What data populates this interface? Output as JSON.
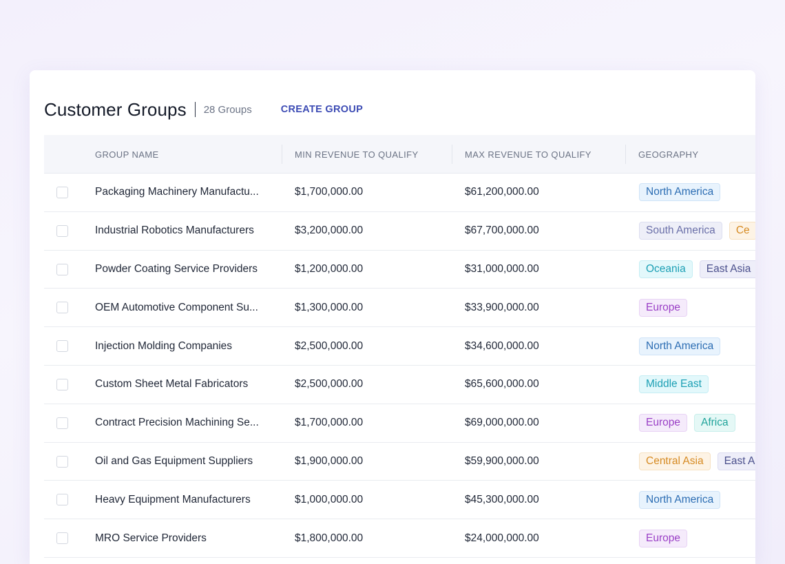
{
  "header": {
    "title": "Customer Groups",
    "count": "28 Groups",
    "create_label": "CREATE GROUP"
  },
  "columns": {
    "name": "GROUP NAME",
    "min": "MIN REVENUE TO QUALIFY",
    "max": "MAX REVENUE TO QUALIFY",
    "geo": "GEOGRAPHY"
  },
  "rows": [
    {
      "name": "Packaging Machinery Manufactu...",
      "min": "$1,700,000.00",
      "max": "$61,200,000.00",
      "tags": [
        {
          "label": "North America",
          "color": "na"
        }
      ]
    },
    {
      "name": "Industrial Robotics Manufacturers",
      "min": "$3,200,000.00",
      "max": "$67,700,000.00",
      "tags": [
        {
          "label": "South America",
          "color": "sa"
        },
        {
          "label": "Ce",
          "color": "ce"
        }
      ]
    },
    {
      "name": "Powder Coating Service Providers",
      "min": "$1,200,000.00",
      "max": "$31,000,000.00",
      "tags": [
        {
          "label": "Oceania",
          "color": "oc"
        },
        {
          "label": "East Asia",
          "color": "ea"
        }
      ]
    },
    {
      "name": "OEM Automotive Component Su...",
      "min": "$1,300,000.00",
      "max": "$33,900,000.00",
      "tags": [
        {
          "label": "Europe",
          "color": "eu"
        }
      ]
    },
    {
      "name": "Injection Molding Companies",
      "min": "$2,500,000.00",
      "max": "$34,600,000.00",
      "tags": [
        {
          "label": "North America",
          "color": "na"
        }
      ]
    },
    {
      "name": "Custom Sheet Metal Fabricators",
      "min": "$2,500,000.00",
      "max": "$65,600,000.00",
      "tags": [
        {
          "label": "Middle East",
          "color": "me"
        }
      ]
    },
    {
      "name": "Contract Precision Machining Se...",
      "min": "$1,700,000.00",
      "max": "$69,000,000.00",
      "tags": [
        {
          "label": "Europe",
          "color": "eu"
        },
        {
          "label": "Africa",
          "color": "af"
        }
      ]
    },
    {
      "name": "Oil and Gas Equipment Suppliers",
      "min": "$1,900,000.00",
      "max": "$59,900,000.00",
      "tags": [
        {
          "label": "Central Asia",
          "color": "ca"
        },
        {
          "label": "East A",
          "color": "ea"
        }
      ]
    },
    {
      "name": "Heavy Equipment Manufacturers",
      "min": "$1,000,000.00",
      "max": "$45,300,000.00",
      "tags": [
        {
          "label": "North America",
          "color": "na"
        }
      ]
    },
    {
      "name": "MRO Service Providers",
      "min": "$1,800,000.00",
      "max": "$24,000,000.00",
      "tags": [
        {
          "label": "Europe",
          "color": "eu"
        }
      ]
    }
  ]
}
